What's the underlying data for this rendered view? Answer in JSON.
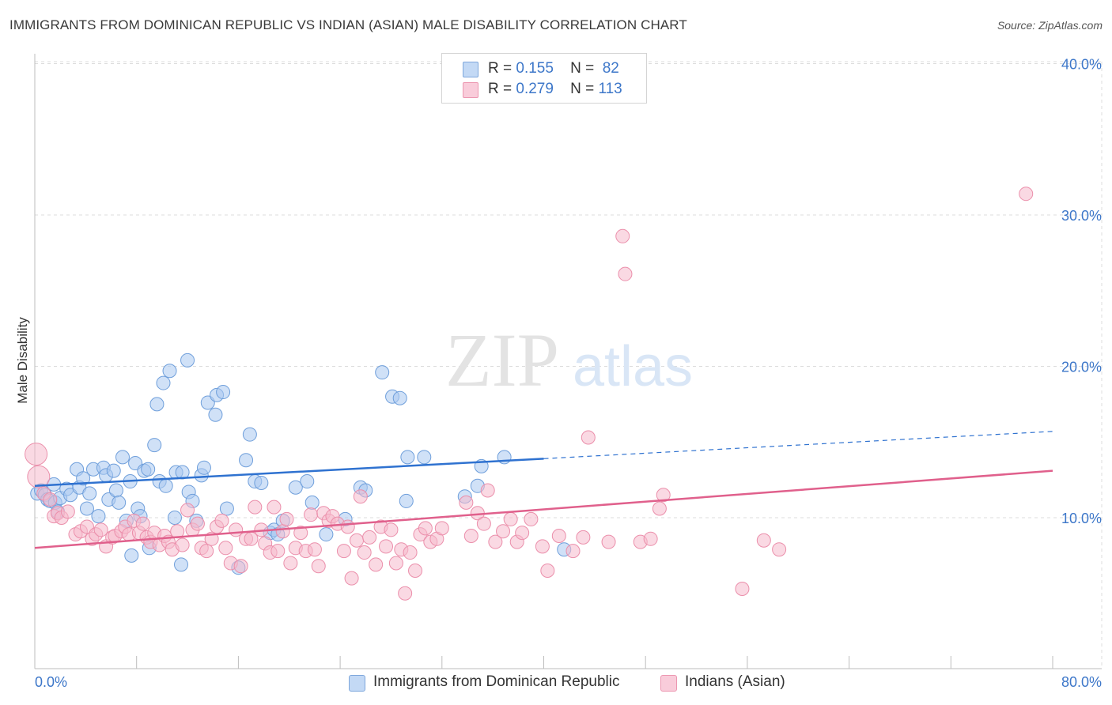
{
  "title": "IMMIGRANTS FROM DOMINICAN REPUBLIC VS INDIAN (ASIAN) MALE DISABILITY CORRELATION CHART",
  "source": "Source: ZipAtlas.com",
  "watermark": {
    "zip": "ZIP",
    "atlas": "atlas"
  },
  "legend": {
    "rows": [
      {
        "r_label": "R =",
        "r_value": "0.155",
        "n_label": "N =",
        "n_value": "82"
      },
      {
        "r_label": "R =",
        "r_value": "0.279",
        "n_label": "N =",
        "n_value": "113"
      }
    ]
  },
  "colors": {
    "blue_fill": "#a9c8f0",
    "blue_stroke": "#6f9fdb",
    "blue_line": "#2f72d0",
    "pink_fill": "#f6b9cc",
    "pink_stroke": "#eb8fab",
    "pink_line": "#e0608c",
    "tick_label": "#3d77c9",
    "grid": "#dcdcdc"
  },
  "chart_data": {
    "type": "scatter",
    "title": "IMMIGRANTS FROM DOMINICAN REPUBLIC VS INDIAN (ASIAN) MALE DISABILITY CORRELATION CHART",
    "xlabel": "",
    "ylabel": "Male Disability",
    "xlim": [
      0,
      80
    ],
    "ylim": [
      0,
      42
    ],
    "x_tick_labels": [
      "0.0%",
      "80.0%"
    ],
    "y_ticks": [
      10,
      20,
      30,
      40
    ],
    "y_tick_labels": [
      "10.0%",
      "20.0%",
      "30.0%",
      "40.0%"
    ],
    "grid": true,
    "legend_position": "top-center",
    "series": [
      {
        "name": "Immigrants from Dominican Republic",
        "color": "#a9c8f0",
        "trend": {
          "x": [
            0,
            40
          ],
          "y": [
            12.1,
            13.9
          ],
          "dashed_extension_to": [
            80,
            15.7
          ]
        },
        "points": [
          [
            0.2,
            11.6
          ],
          [
            0.5,
            11.8
          ],
          [
            0.8,
            11.5
          ],
          [
            1.0,
            11.2
          ],
          [
            1.2,
            11.1
          ],
          [
            1.5,
            12.2
          ],
          [
            1.6,
            11.0
          ],
          [
            1.8,
            10.4
          ],
          [
            2.0,
            11.3
          ],
          [
            2.5,
            11.9
          ],
          [
            2.8,
            11.5
          ],
          [
            3.3,
            13.2
          ],
          [
            3.5,
            12.0
          ],
          [
            3.8,
            12.6
          ],
          [
            4.1,
            10.6
          ],
          [
            4.3,
            11.6
          ],
          [
            4.6,
            13.2
          ],
          [
            5.0,
            10.1
          ],
          [
            5.4,
            13.3
          ],
          [
            5.6,
            12.8
          ],
          [
            5.8,
            11.2
          ],
          [
            6.2,
            13.1
          ],
          [
            6.4,
            11.8
          ],
          [
            6.6,
            11.0
          ],
          [
            6.9,
            14.0
          ],
          [
            7.2,
            9.8
          ],
          [
            7.5,
            12.4
          ],
          [
            7.6,
            7.5
          ],
          [
            7.9,
            13.6
          ],
          [
            8.1,
            10.6
          ],
          [
            8.3,
            10.1
          ],
          [
            8.6,
            13.1
          ],
          [
            8.9,
            13.2
          ],
          [
            9.0,
            8.0
          ],
          [
            9.4,
            14.8
          ],
          [
            9.6,
            17.5
          ],
          [
            9.8,
            12.4
          ],
          [
            10.1,
            18.9
          ],
          [
            10.3,
            12.1
          ],
          [
            10.6,
            19.7
          ],
          [
            11.0,
            10.0
          ],
          [
            11.1,
            13.0
          ],
          [
            11.5,
            6.9
          ],
          [
            11.6,
            13.0
          ],
          [
            12.0,
            20.4
          ],
          [
            12.1,
            11.7
          ],
          [
            12.4,
            11.1
          ],
          [
            12.7,
            9.8
          ],
          [
            13.1,
            12.8
          ],
          [
            13.3,
            13.3
          ],
          [
            13.6,
            17.6
          ],
          [
            14.2,
            16.8
          ],
          [
            14.3,
            18.1
          ],
          [
            14.8,
            18.3
          ],
          [
            15.1,
            10.6
          ],
          [
            16.0,
            6.7
          ],
          [
            16.6,
            13.8
          ],
          [
            16.9,
            15.5
          ],
          [
            17.3,
            12.4
          ],
          [
            17.8,
            12.3
          ],
          [
            18.5,
            9.0
          ],
          [
            18.8,
            9.2
          ],
          [
            19.1,
            8.9
          ],
          [
            19.5,
            9.8
          ],
          [
            20.5,
            12.0
          ],
          [
            21.4,
            12.4
          ],
          [
            21.8,
            11.0
          ],
          [
            22.9,
            8.9
          ],
          [
            24.4,
            9.9
          ],
          [
            25.6,
            12.0
          ],
          [
            26.0,
            11.8
          ],
          [
            27.3,
            19.6
          ],
          [
            28.1,
            18.0
          ],
          [
            28.7,
            17.9
          ],
          [
            29.2,
            11.1
          ],
          [
            29.3,
            14.0
          ],
          [
            30.6,
            14.0
          ],
          [
            33.8,
            11.4
          ],
          [
            34.8,
            12.1
          ],
          [
            35.1,
            13.4
          ],
          [
            36.9,
            14.0
          ],
          [
            41.6,
            7.9
          ]
        ]
      },
      {
        "name": "Indians (Asian)",
        "color": "#f6b9cc",
        "trend": {
          "x": [
            0,
            80
          ],
          "y": [
            8.0,
            13.1
          ]
        },
        "points": [
          [
            0.1,
            14.2
          ],
          [
            0.3,
            12.7
          ],
          [
            0.7,
            11.6
          ],
          [
            1.2,
            11.2
          ],
          [
            1.5,
            10.1
          ],
          [
            1.8,
            10.3
          ],
          [
            2.1,
            10.0
          ],
          [
            2.6,
            10.4
          ],
          [
            3.2,
            8.9
          ],
          [
            3.6,
            9.1
          ],
          [
            4.1,
            9.4
          ],
          [
            4.5,
            8.6
          ],
          [
            4.8,
            8.9
          ],
          [
            5.2,
            9.2
          ],
          [
            5.6,
            8.1
          ],
          [
            6.1,
            8.7
          ],
          [
            6.3,
            8.8
          ],
          [
            6.8,
            9.1
          ],
          [
            7.1,
            9.4
          ],
          [
            7.4,
            8.9
          ],
          [
            7.8,
            9.8
          ],
          [
            8.2,
            9.0
          ],
          [
            8.5,
            9.6
          ],
          [
            8.8,
            8.7
          ],
          [
            9.1,
            8.4
          ],
          [
            9.4,
            9.0
          ],
          [
            9.8,
            8.2
          ],
          [
            10.2,
            8.8
          ],
          [
            10.5,
            8.4
          ],
          [
            10.8,
            7.9
          ],
          [
            11.2,
            9.1
          ],
          [
            11.6,
            8.2
          ],
          [
            12.0,
            10.5
          ],
          [
            12.4,
            9.2
          ],
          [
            12.8,
            9.6
          ],
          [
            13.1,
            8.0
          ],
          [
            13.5,
            7.8
          ],
          [
            13.9,
            8.6
          ],
          [
            14.3,
            9.4
          ],
          [
            14.7,
            9.8
          ],
          [
            15.0,
            8.0
          ],
          [
            15.4,
            7.0
          ],
          [
            15.8,
            9.2
          ],
          [
            16.2,
            6.8
          ],
          [
            16.6,
            8.6
          ],
          [
            17.0,
            8.6
          ],
          [
            17.3,
            10.7
          ],
          [
            17.8,
            9.2
          ],
          [
            18.1,
            8.3
          ],
          [
            18.5,
            7.7
          ],
          [
            18.8,
            10.7
          ],
          [
            19.1,
            7.8
          ],
          [
            19.5,
            9.1
          ],
          [
            19.8,
            9.9
          ],
          [
            20.1,
            7.0
          ],
          [
            20.5,
            8.0
          ],
          [
            20.9,
            9.0
          ],
          [
            21.3,
            7.8
          ],
          [
            21.7,
            10.2
          ],
          [
            22.0,
            7.9
          ],
          [
            22.3,
            6.8
          ],
          [
            22.7,
            10.3
          ],
          [
            23.1,
            9.8
          ],
          [
            23.4,
            10.1
          ],
          [
            23.8,
            9.6
          ],
          [
            24.3,
            7.8
          ],
          [
            24.6,
            9.4
          ],
          [
            24.9,
            6.0
          ],
          [
            25.3,
            8.5
          ],
          [
            25.6,
            11.4
          ],
          [
            25.9,
            7.7
          ],
          [
            26.3,
            8.7
          ],
          [
            26.8,
            6.9
          ],
          [
            27.2,
            9.4
          ],
          [
            27.6,
            8.1
          ],
          [
            28.0,
            9.2
          ],
          [
            28.4,
            7.0
          ],
          [
            28.8,
            7.9
          ],
          [
            29.1,
            5.0
          ],
          [
            29.5,
            7.7
          ],
          [
            29.9,
            6.5
          ],
          [
            30.3,
            8.9
          ],
          [
            30.7,
            9.3
          ],
          [
            31.1,
            8.4
          ],
          [
            31.6,
            8.6
          ],
          [
            32.0,
            9.3
          ],
          [
            33.9,
            11.0
          ],
          [
            34.3,
            8.8
          ],
          [
            34.8,
            10.3
          ],
          [
            35.3,
            9.6
          ],
          [
            35.6,
            11.8
          ],
          [
            36.2,
            8.4
          ],
          [
            36.8,
            9.1
          ],
          [
            37.4,
            9.9
          ],
          [
            37.9,
            8.4
          ],
          [
            38.3,
            9.0
          ],
          [
            39.0,
            9.9
          ],
          [
            39.9,
            8.1
          ],
          [
            40.3,
            6.5
          ],
          [
            41.2,
            8.8
          ],
          [
            42.3,
            7.8
          ],
          [
            43.1,
            8.7
          ],
          [
            43.5,
            15.3
          ],
          [
            45.1,
            8.4
          ],
          [
            46.2,
            28.6
          ],
          [
            46.4,
            26.1
          ],
          [
            47.6,
            8.4
          ],
          [
            48.4,
            8.6
          ],
          [
            49.1,
            10.6
          ],
          [
            49.4,
            11.5
          ],
          [
            55.6,
            5.3
          ],
          [
            57.3,
            8.5
          ],
          [
            58.5,
            7.9
          ],
          [
            77.9,
            31.4
          ]
        ]
      }
    ]
  }
}
